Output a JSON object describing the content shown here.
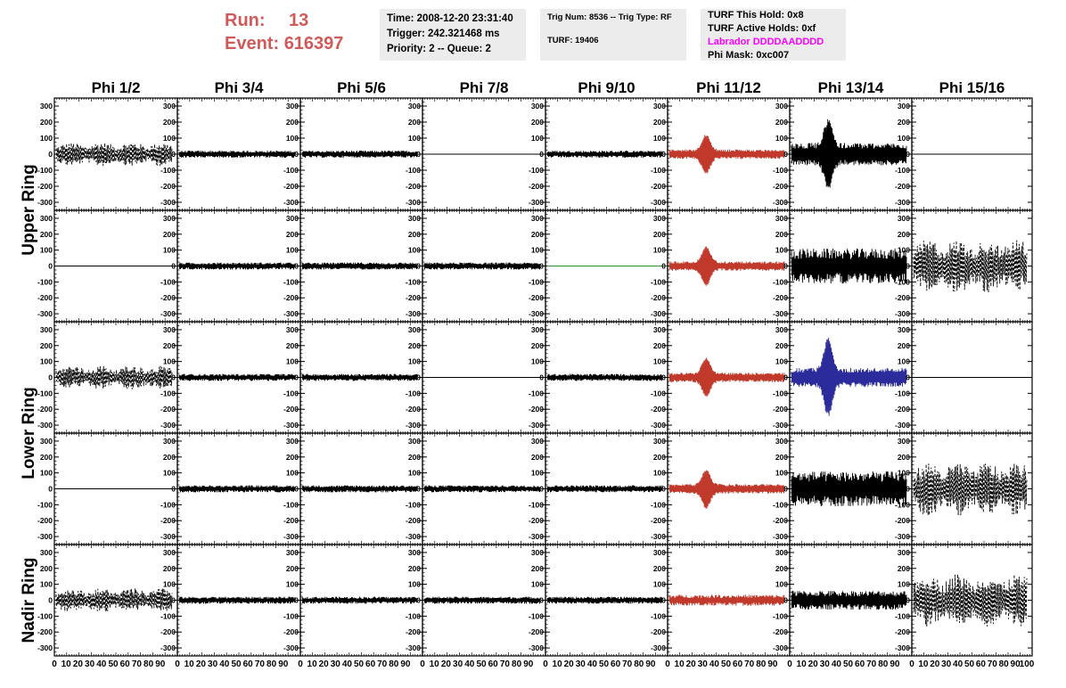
{
  "run": {
    "run_label": "Run:",
    "run_value": "13",
    "event_label": "Event:",
    "event_value": "616397"
  },
  "info1": {
    "time": "Time: 2008-12-20 23:31:40",
    "trigger": "Trigger: 242.321468 ms",
    "priority": "Priority: 2 -- Queue: 2"
  },
  "info2": {
    "trig": "Trig Num: 8536 -- Trig Type: RF",
    "turf": "TURF: 19406"
  },
  "info3": {
    "hold": "TURF This Hold: 0x8",
    "active": "TURF Active Holds: 0xf",
    "labrador": "Labrador DDDDAADDDD",
    "phimask": "Phi Mask: 0xc007"
  },
  "colors": {
    "run_text": "#d05a5a",
    "labrador": "#ff00ff",
    "red_trace": "#c0392b",
    "blue_trace": "#2b2b9b",
    "green_trace": "#2e8b2e",
    "black_trace": "#000000"
  },
  "chart_data": {
    "type": "line",
    "columns": [
      "Phi 1/2",
      "Phi 3/4",
      "Phi 5/6",
      "Phi 7/8",
      "Phi 9/10",
      "Phi 11/12",
      "Phi 13/14",
      "Phi 15/16"
    ],
    "rows": [
      "Upper Ring",
      "Lower Ring",
      "Nadir Ring"
    ],
    "ylim": [
      -350,
      350
    ],
    "y_ticks": [
      300,
      200,
      100,
      0,
      -100,
      -200,
      -300
    ],
    "xlim": [
      0,
      100
    ],
    "x_tick_labels": [
      "0",
      "10",
      "20",
      "30",
      "40",
      "50",
      "60",
      "70",
      "80",
      "90",
      "100"
    ],
    "panels": [
      [
        "dashed-medium",
        "solid-small",
        "solid-small",
        "flat",
        "solid-small",
        "red-burst",
        "burst-large",
        "flat"
      ],
      [
        "flat",
        "solid-small",
        "solid-small",
        "solid-small",
        "green-flat",
        "red-burst",
        "solid-large",
        "dashed-large"
      ],
      [
        "dashed-medium",
        "solid-small",
        "solid-small",
        "flat",
        "solid-small",
        "red-burst",
        "blue-burst",
        "flat"
      ],
      [
        "flat",
        "solid-small",
        "solid-small",
        "solid-small",
        "solid-small",
        "red-burst",
        "solid-large",
        "dashed-large"
      ],
      [
        "dashed-medium",
        "solid-small",
        "solid-small",
        "solid-small",
        "solid-small",
        "red-medium",
        "solid-medium",
        "dashed-large"
      ]
    ]
  }
}
